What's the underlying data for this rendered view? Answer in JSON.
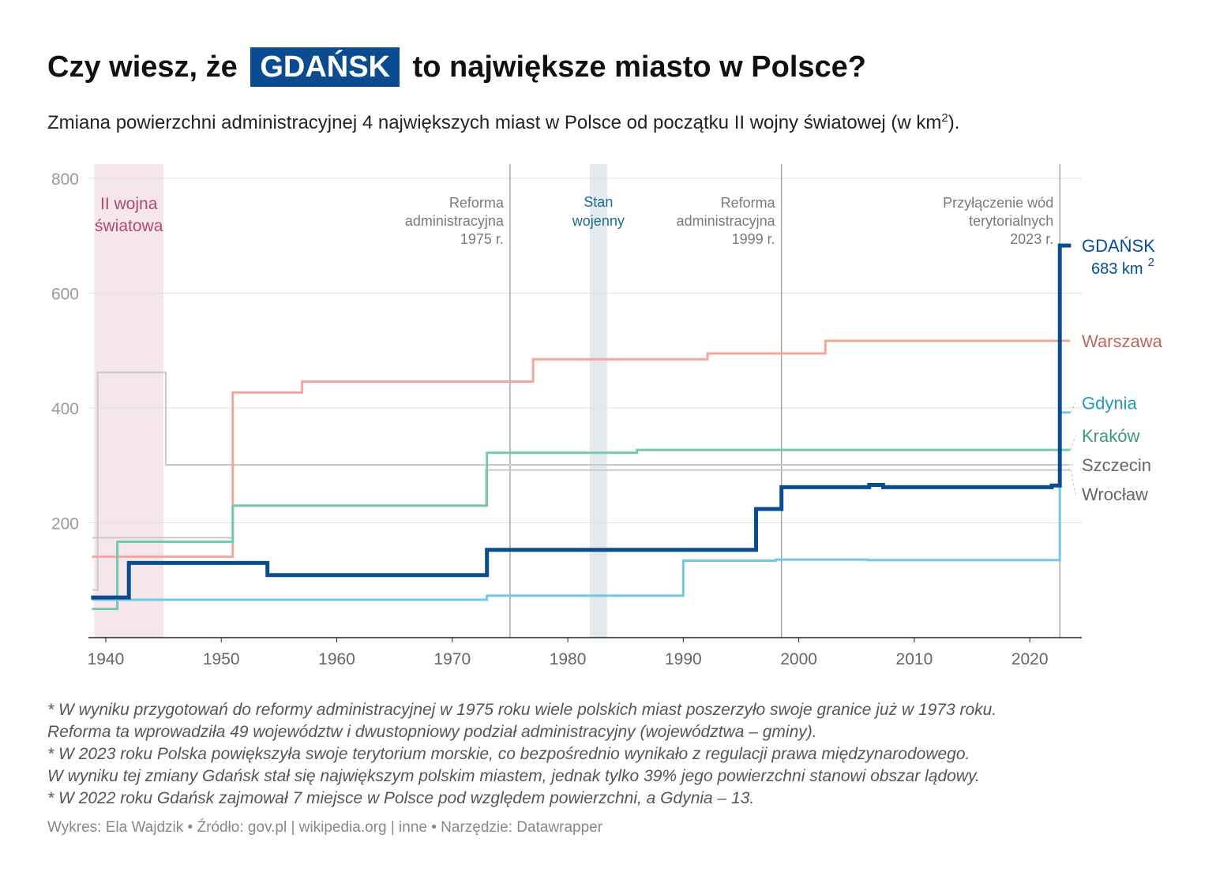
{
  "header": {
    "title_before": "Czy wiesz, że",
    "title_highlight": "GDAŃSK",
    "title_after": "to największe miasto w Polsce?",
    "subtitle_main": "Zmiana powierzchni administracyjnej 4 największych miast w Polsce od początku II wojny światowej (w km",
    "subtitle_sup": "2",
    "subtitle_end": ")."
  },
  "notes": [
    "* W wyniku przygotowań do reformy administracyjnej w 1975 roku wiele polskich miast poszerzyło swoje granice już w 1973 roku.",
    "Reforma ta wprowadziła 49 województw i dwustopniowy podział administracyjny (województwa – gminy).",
    "* W 2023 roku Polska powiększyła swoje terytorium morskie, co bezpośrednio wynikało z regulacji prawa międzynarodowego.",
    "W wyniku tej zmiany Gdańsk stał się największym polskim miastem, jednak tylko 39% jego powierzchni stanowi obszar lądowy.",
    "* W 2022 roku Gdańsk zajmował 7 miejsce w Polsce pod względem powierzchni, a Gdynia – 13."
  ],
  "footer": "Wykres: Ela Wajdzik • Źródło: gov.pl | wikipedia.org | inne • Narzędzie: Datawrapper",
  "chart_data": {
    "type": "line",
    "step": true,
    "title": "Czy wiesz, że GDAŃSK to największe miasto w Polsce?",
    "ylabel": "",
    "xlabel": "",
    "xlim": [
      1938.5,
      2024.5
    ],
    "ylim": [
      0,
      800
    ],
    "x_ticks": [
      1940,
      1950,
      1960,
      1970,
      1980,
      1990,
      2000,
      2010,
      2020
    ],
    "y_ticks": [
      200,
      400,
      600,
      800
    ],
    "grid": true,
    "shaded_periods": [
      {
        "label": "II wojna\nświatowa",
        "x": [
          1939.0,
          1945.0
        ],
        "color": "#f4e6eb",
        "text_color": "#b04a6e"
      },
      {
        "label": "Stan\nwojenny",
        "x": [
          1981.9,
          1983.4
        ],
        "color": "#e3e9ed",
        "text_color": "#1d6b8a"
      }
    ],
    "event_lines": [
      {
        "x": 1975.0,
        "label": "Reforma\nadministracyjna\n1975 r."
      },
      {
        "x": 1998.5,
        "label": "Reforma\nadministracyjna\n1999 r."
      },
      {
        "x": 2022.6,
        "label": "Przyłączenie wód\nterytorialnych\n2023 r."
      }
    ],
    "series": [
      {
        "name": "Szczecin",
        "color": "#c9c9c9",
        "width": 2,
        "points": [
          [
            1938.9,
            83
          ],
          [
            1939.3,
            462
          ],
          [
            1945.2,
            301
          ],
          [
            2023.4,
            301
          ]
        ]
      },
      {
        "name": "Wrocław",
        "color": "#c9c9c9",
        "width": 2,
        "points": [
          [
            1938.9,
            174
          ],
          [
            1951.0,
            229
          ],
          [
            1972.9,
            292
          ],
          [
            2023.4,
            293
          ]
        ]
      },
      {
        "name": "Warszawa",
        "color": "#f4a69c",
        "width": 3,
        "points": [
          [
            1938.9,
            141
          ],
          [
            1951.0,
            427
          ],
          [
            1957.0,
            446
          ],
          [
            1977.0,
            485
          ],
          [
            1992.1,
            495
          ],
          [
            2002.3,
            517
          ],
          [
            2023.4,
            517
          ]
        ]
      },
      {
        "name": "Kraków",
        "color": "#76c8ae",
        "width": 3,
        "points": [
          [
            1938.9,
            50
          ],
          [
            1941.0,
            167
          ],
          [
            1951.0,
            230
          ],
          [
            1973.0,
            322
          ],
          [
            1986.0,
            327
          ],
          [
            2023.4,
            327
          ]
        ]
      },
      {
        "name": "Gdynia",
        "color": "#6ecbe2",
        "width": 3,
        "points": [
          [
            1938.9,
            66
          ],
          [
            1973.0,
            73
          ],
          [
            1990.0,
            134
          ],
          [
            1998.0,
            136
          ],
          [
            2006.0,
            135
          ],
          [
            2022.6,
            392
          ],
          [
            2023.4,
            392
          ]
        ]
      },
      {
        "name": "GDAŃSK",
        "color": "#0b4c91",
        "width": 5,
        "points": [
          [
            1938.9,
            70
          ],
          [
            1942.0,
            130
          ],
          [
            1954.0,
            109
          ],
          [
            1973.0,
            153
          ],
          [
            1996.3,
            224
          ],
          [
            1998.5,
            262
          ],
          [
            2006.1,
            266
          ],
          [
            2007.3,
            262
          ],
          [
            2021.9,
            265
          ],
          [
            2022.6,
            683
          ],
          [
            2023.4,
            683
          ]
        ]
      }
    ],
    "labels": [
      {
        "series": "GDAŃSK",
        "text": "GDAŃSK",
        "sub": "683 km",
        "sup": "2",
        "y": 683,
        "color": "#0b4c91"
      },
      {
        "series": "Warszawa",
        "text": "Warszawa",
        "y": 517,
        "color": "#c0675a"
      },
      {
        "series": "Gdynia",
        "text": "Gdynia",
        "y": 409,
        "color": "#1f9ab6",
        "leader": true
      },
      {
        "series": "Kraków",
        "text": "Kraków",
        "y": 352,
        "color": "#3a9a7c",
        "leader": true
      },
      {
        "series": "Szczecin",
        "text": "Szczecin",
        "y": 301,
        "color": "#666666",
        "leader": true
      },
      {
        "series": "Wrocław",
        "text": "Wrocław",
        "y": 250,
        "color": "#666666",
        "leader": true
      }
    ]
  }
}
